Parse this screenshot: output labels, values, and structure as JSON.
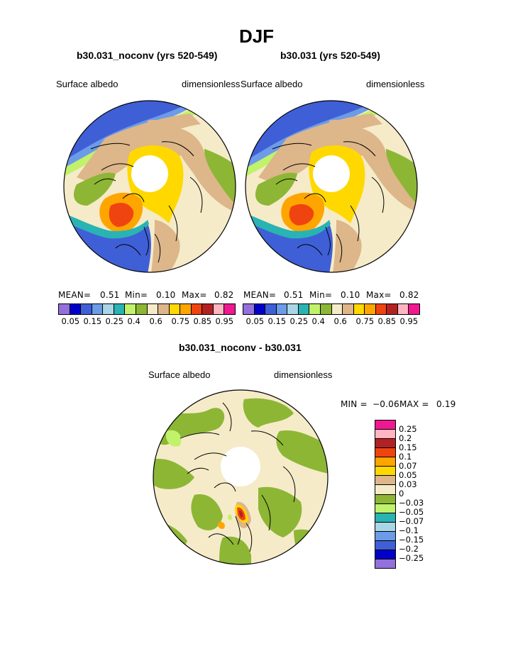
{
  "page_title": "DJF",
  "colors": {
    "abs_palette": [
      "#9370DB",
      "#0000C8",
      "#3F5FD6",
      "#6C9BE8",
      "#A9D6E6",
      "#29B3B3",
      "#C1F26B",
      "#8DB635",
      "#F5EBC8",
      "#DDB68A",
      "#FFD800",
      "#FFA500",
      "#F04410",
      "#B22222",
      "#FFB6C1",
      "#F01890"
    ],
    "diff_palette": [
      "#F01890",
      "#FFB6C1",
      "#B22222",
      "#F04410",
      "#FFA500",
      "#FFD800",
      "#DDB68A",
      "#F5EBC8",
      "#8DB635",
      "#C1F26B",
      "#29B3B3",
      "#A9D6E6",
      "#6C9BE8",
      "#3F5FD6",
      "#0000C8",
      "#9370DB"
    ]
  },
  "panels": [
    {
      "name": "b30.031_noconv (yrs 520-549)",
      "left_label": "Surface albedo",
      "right_label": "dimensionless",
      "stats": {
        "mean_label": "MEAN=",
        "mean": "0.51",
        "min_label": "Min=",
        "min": "0.10",
        "max_label": "Max=",
        "max": "0.82"
      }
    },
    {
      "name": "b30.031 (yrs 520-549)",
      "left_label": "Surface albedo",
      "right_label": "dimensionless",
      "stats": {
        "mean_label": "MEAN=",
        "mean": "0.51",
        "min_label": "Min=",
        "min": "0.10",
        "max_label": "Max=",
        "max": "0.82"
      }
    }
  ],
  "colorbar_ticks": [
    "0.05",
    "0.15",
    "0.25",
    "0.4",
    "0.6",
    "0.75",
    "0.85",
    "0.95"
  ],
  "difference": {
    "name": "b30.031_noconv - b30.031",
    "left_label": "Surface albedo",
    "right_label": "dimensionless",
    "min_label": "MIN =",
    "min": "−0.06",
    "max_label": "MAX =",
    "max": "0.19",
    "colorbar_labels": [
      "0.25",
      "0.2",
      "0.15",
      "0.1",
      "0.07",
      "0.05",
      "0.03",
      "0",
      "−0.03",
      "−0.05",
      "−0.07",
      "−0.1",
      "−0.15",
      "−0.2",
      "−0.25"
    ]
  }
}
